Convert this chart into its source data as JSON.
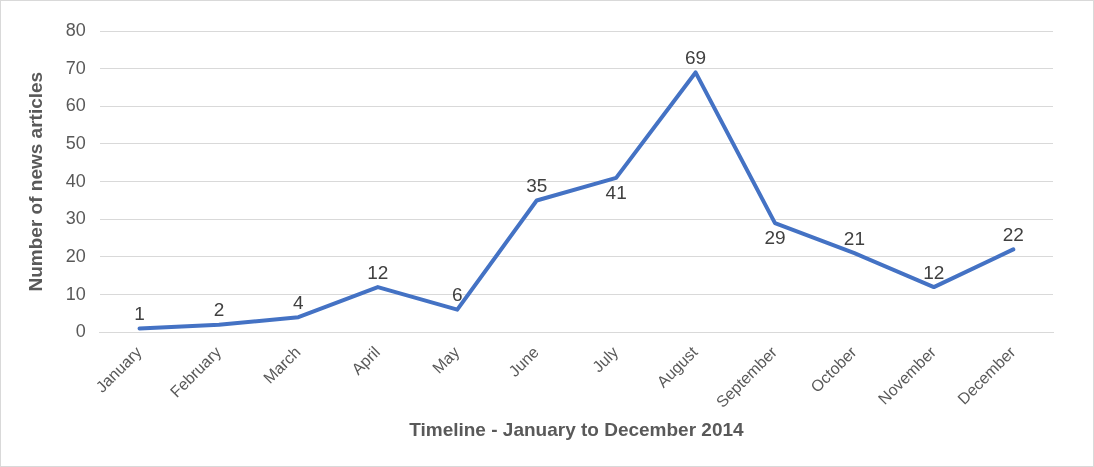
{
  "chart_data": {
    "type": "line",
    "xlabel": "Timeline - January to December 2014",
    "ylabel": "Number of news articles",
    "categories": [
      "January",
      "February",
      "March",
      "April",
      "May",
      "June",
      "July",
      "August",
      "September",
      "October",
      "November",
      "December"
    ],
    "series": [
      {
        "color": "#4472c4",
        "values": [
          1,
          2,
          4,
          12,
          6,
          35,
          41,
          69,
          29,
          21,
          12,
          22
        ]
      }
    ],
    "ylim": [
      0,
      80
    ],
    "yticks": [
      0,
      10,
      20,
      30,
      40,
      50,
      60,
      70,
      80
    ],
    "grid": "y",
    "legend": false,
    "marker": "none",
    "line_style": "solid",
    "data_labels": true
  }
}
